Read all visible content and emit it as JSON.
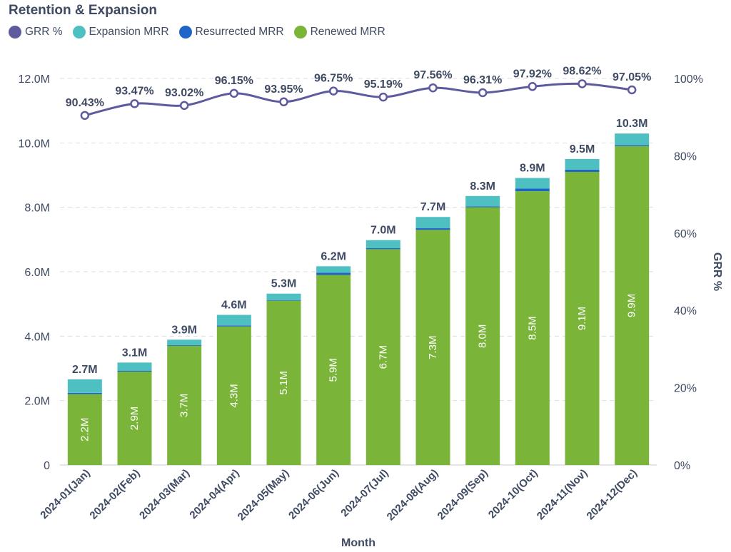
{
  "title": "Retention & Expansion",
  "legend": [
    {
      "name": "GRR %",
      "color": "#5e5a9e"
    },
    {
      "name": "Expansion MRR",
      "color": "#4fc0c2"
    },
    {
      "name": "Resurrected MRR",
      "color": "#1f64c8"
    },
    {
      "name": "Renewed MRR",
      "color": "#7ab53a"
    }
  ],
  "chart_data": {
    "type": "bar",
    "stacked": true,
    "title": "Retention & Expansion",
    "xlabel": "Month",
    "ylabel": "",
    "y2label": "GRR %",
    "categories": [
      "2024-01(Jan)",
      "2024-02(Feb)",
      "2024-03(Mar)",
      "2024-04(Apr)",
      "2024-05(May)",
      "2024-06(Jun)",
      "2024-07(Jul)",
      "2024-08(Aug)",
      "2024-09(Sep)",
      "2024-10(Oct)",
      "2024-11(Nov)",
      "2024-12(Dec)"
    ],
    "ylim": [
      0,
      12000000
    ],
    "yticks": [
      {
        "v": 0,
        "label": "0"
      },
      {
        "v": 2000000,
        "label": "2.0M"
      },
      {
        "v": 4000000,
        "label": "4.0M"
      },
      {
        "v": 6000000,
        "label": "6.0M"
      },
      {
        "v": 8000000,
        "label": "8.0M"
      },
      {
        "v": 10000000,
        "label": "10.0M"
      },
      {
        "v": 12000000,
        "label": "12.0M"
      }
    ],
    "y2lim": [
      0,
      100
    ],
    "y2ticks": [
      {
        "v": 0,
        "label": "0%"
      },
      {
        "v": 20,
        "label": "20%"
      },
      {
        "v": 40,
        "label": "40%"
      },
      {
        "v": 60,
        "label": "60%"
      },
      {
        "v": 80,
        "label": "80%"
      },
      {
        "v": 100,
        "label": "100%"
      }
    ],
    "grid": true,
    "legend_position": "top-left",
    "series": [
      {
        "name": "Renewed MRR",
        "color": "#7ab53a",
        "values": [
          2200000,
          2900000,
          3700000,
          4300000,
          5100000,
          5900000,
          6700000,
          7300000,
          8000000,
          8500000,
          9100000,
          9900000
        ],
        "labels": [
          "2.2M",
          "2.9M",
          "3.7M",
          "4.3M",
          "5.1M",
          "5.9M",
          "6.7M",
          "7.3M",
          "8.0M",
          "8.5M",
          "9.1M",
          "9.9M"
        ]
      },
      {
        "name": "Resurrected MRR",
        "color": "#1f64c8",
        "values": [
          40000,
          30000,
          20000,
          30000,
          20000,
          70000,
          30000,
          50000,
          30000,
          80000,
          70000,
          30000
        ]
      },
      {
        "name": "Expansion MRR",
        "color": "#4fc0c2",
        "values": [
          420000,
          250000,
          170000,
          330000,
          200000,
          200000,
          250000,
          350000,
          320000,
          330000,
          330000,
          360000
        ]
      },
      {
        "name": "GRR %",
        "type": "line",
        "axis": "right",
        "color": "#5e5a9e",
        "values": [
          90.43,
          93.47,
          93.02,
          96.15,
          93.95,
          96.75,
          95.19,
          97.56,
          96.31,
          97.92,
          98.62,
          97.05
        ],
        "labels": [
          "90.43%",
          "93.47%",
          "93.02%",
          "96.15%",
          "93.95%",
          "96.75%",
          "95.19%",
          "97.56%",
          "96.31%",
          "97.92%",
          "98.62%",
          "97.05%"
        ]
      }
    ],
    "totals": [
      "2.7M",
      "3.1M",
      "3.9M",
      "4.6M",
      "5.3M",
      "6.2M",
      "7.0M",
      "7.7M",
      "8.3M",
      "8.9M",
      "9.5M",
      "10.3M"
    ]
  }
}
